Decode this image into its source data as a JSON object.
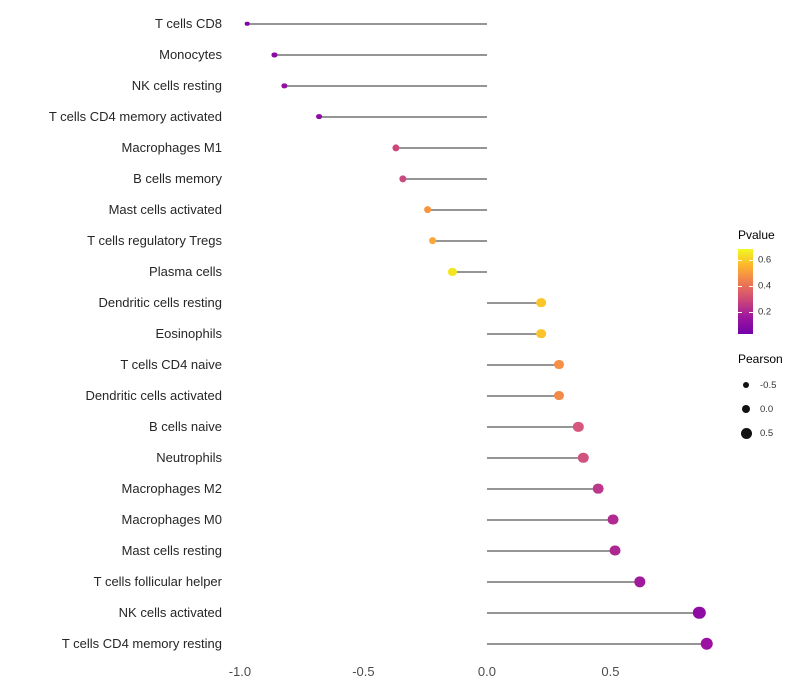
{
  "chart_data": {
    "type": "scatter",
    "subtype": "lollipop",
    "title": "",
    "xlabel": "",
    "ylabel": "",
    "xlim": [
      -1.032,
      0.911
    ],
    "grid": false,
    "x_ticks": [
      {
        "value": -1.0,
        "label": "-1.0"
      },
      {
        "value": -0.5,
        "label": "-0.5"
      },
      {
        "value": 0.0,
        "label": "0.0"
      },
      {
        "value": 0.5,
        "label": "0.5"
      }
    ],
    "size_domain": [
      -1,
      1
    ],
    "dot_size_min": 4.5,
    "dot_size_span": 8.5,
    "stem_origin": 0,
    "points": [
      {
        "label": "T cells CD8",
        "pearson": -0.97,
        "color": "#8405a7"
      },
      {
        "label": "Monocytes",
        "pearson": -0.86,
        "color": "#8d0ba5"
      },
      {
        "label": "NK cells resting",
        "pearson": -0.82,
        "color": "#9512a0"
      },
      {
        "label": "T cells CD4 memory activated",
        "pearson": -0.68,
        "color": "#8e0ca4"
      },
      {
        "label": "Macrophages M1",
        "pearson": -0.37,
        "color": "#cb4679"
      },
      {
        "label": "B cells memory",
        "pearson": -0.34,
        "color": "#c94a7e"
      },
      {
        "label": "Mast cells activated",
        "pearson": -0.24,
        "color": "#f8963f"
      },
      {
        "label": "T cells regulatory Tregs",
        "pearson": -0.22,
        "color": "#fca636"
      },
      {
        "label": "Plasma cells",
        "pearson": -0.14,
        "color": "#f4e61e"
      },
      {
        "label": "Dendritic cells resting",
        "pearson": 0.22,
        "color": "#fcc52a"
      },
      {
        "label": "Eosinophils",
        "pearson": 0.22,
        "color": "#fbc32c"
      },
      {
        "label": "T cells CD4 naive",
        "pearson": 0.29,
        "color": "#f59044"
      },
      {
        "label": "Dendritic cells activated",
        "pearson": 0.29,
        "color": "#f38b48"
      },
      {
        "label": "B cells naive",
        "pearson": 0.37,
        "color": "#d6567d"
      },
      {
        "label": "Neutrophils",
        "pearson": 0.39,
        "color": "#d0537f"
      },
      {
        "label": "Macrophages M2",
        "pearson": 0.45,
        "color": "#bd388a"
      },
      {
        "label": "Macrophages M0",
        "pearson": 0.51,
        "color": "#b02a91"
      },
      {
        "label": "Mast cells resting",
        "pearson": 0.52,
        "color": "#ad2793"
      },
      {
        "label": "T cells follicular helper",
        "pearson": 0.62,
        "color": "#a01a9c"
      },
      {
        "label": "NK cells activated",
        "pearson": 0.86,
        "color": "#8e0ca4"
      },
      {
        "label": "T cells CD4 memory resting",
        "pearson": 0.89,
        "color": "#9c11a1"
      }
    ],
    "legends": {
      "pvalue": {
        "title": "Pvalue",
        "gradient": [
          "#f0f921",
          "#fdb32f",
          "#ed7953",
          "#cc4778",
          "#9c179e",
          "#7301a8"
        ],
        "ticks": [
          {
            "label": "0.6",
            "pos": 13
          },
          {
            "label": "0.4",
            "pos": 43
          },
          {
            "label": "0.2",
            "pos": 74
          }
        ]
      },
      "pearson": {
        "title": "Pearson",
        "items": [
          {
            "label": "-0.5",
            "size": 6
          },
          {
            "label": "0.0",
            "size": 8.5
          },
          {
            "label": "0.5",
            "size": 11
          }
        ]
      }
    }
  }
}
